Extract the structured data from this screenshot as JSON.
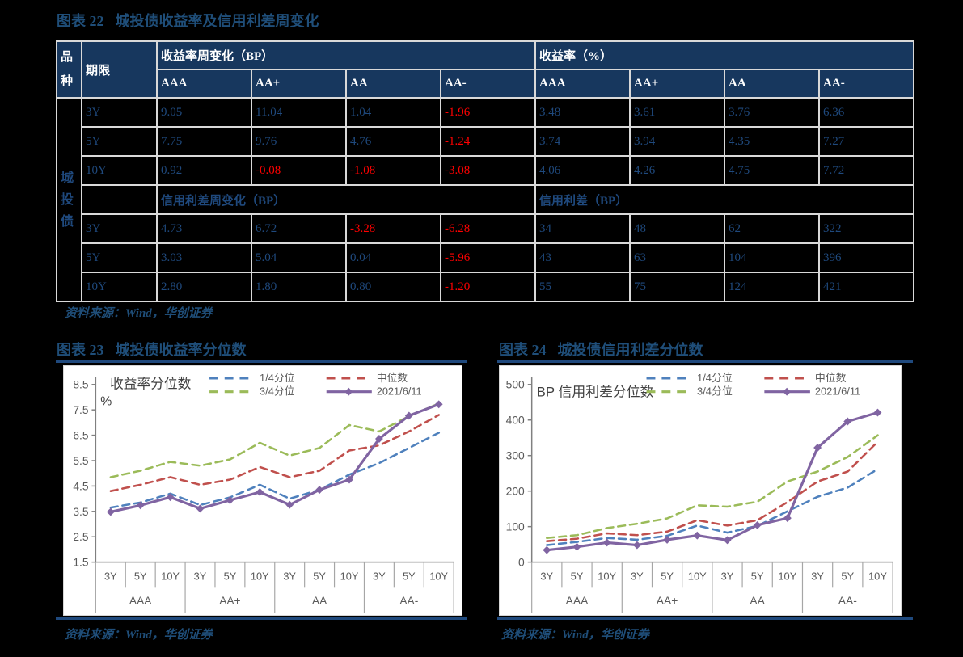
{
  "figure22": {
    "label": "图表 22",
    "title": "城投债收益率及信用利差周变化",
    "source": "资料来源：Wind，华创证券",
    "table": {
      "species_header": "品种",
      "term_header": "期限",
      "species": [
        "城",
        "投",
        "债"
      ],
      "ratings": [
        "AAA",
        "AA+",
        "AA",
        "AA-"
      ],
      "sections": [
        {
          "left_title": "收益率周变化（BP）",
          "right_title": "收益率（%）",
          "rows": [
            {
              "term": "3Y",
              "left": [
                "9.05",
                "11.04",
                "1.04",
                "-1.96"
              ],
              "right": [
                "3.48",
                "3.61",
                "3.76",
                "6.36"
              ]
            },
            {
              "term": "5Y",
              "left": [
                "7.75",
                "9.76",
                "4.76",
                "-1.24"
              ],
              "right": [
                "3.74",
                "3.94",
                "4.35",
                "7.27"
              ]
            },
            {
              "term": "10Y",
              "left": [
                "0.92",
                "-0.08",
                "-1.08",
                "-3.08"
              ],
              "right": [
                "4.06",
                "4.26",
                "4.75",
                "7.72"
              ]
            }
          ]
        },
        {
          "left_title": "信用利差周变化（BP）",
          "right_title": "信用利差（BP）",
          "rows": [
            {
              "term": "3Y",
              "left": [
                "4.73",
                "6.72",
                "-3.28",
                "-6.28"
              ],
              "right": [
                "34",
                "48",
                "62",
                "322"
              ]
            },
            {
              "term": "5Y",
              "left": [
                "3.03",
                "5.04",
                "0.04",
                "-5.96"
              ],
              "right": [
                "43",
                "63",
                "104",
                "396"
              ]
            },
            {
              "term": "10Y",
              "left": [
                "2.80",
                "1.80",
                "0.80",
                "-1.20"
              ],
              "right": [
                "55",
                "75",
                "124",
                "421"
              ]
            }
          ]
        }
      ]
    }
  },
  "figure23": {
    "label": "图表 23",
    "title": "城投债收益率分位数",
    "source": "资料来源：Wind，华创证券"
  },
  "figure24": {
    "label": "图表 24",
    "title": "城投债信用利差分位数",
    "source": "资料来源：Wind，华创证券"
  },
  "chart_data": [
    {
      "type": "line",
      "inner_title": "收益率分位数",
      "unit": "%",
      "ylim": [
        1.5,
        8.5
      ],
      "yticks": [
        "8.5",
        "7.5",
        "6.5",
        "5.5",
        "4.5",
        "3.5",
        "2.5",
        "1.5"
      ],
      "ytick_values": [
        8.5,
        7.5,
        6.5,
        5.5,
        4.5,
        3.5,
        2.5,
        1.5
      ],
      "groups": [
        "AAA",
        "AA+",
        "AA",
        "AA-"
      ],
      "terms": [
        "3Y",
        "5Y",
        "10Y"
      ],
      "legend_position": "top",
      "grid": false,
      "series": [
        {
          "name": "1/4分位",
          "color": "#4F81BD",
          "style": "dashed",
          "values": [
            3.65,
            3.85,
            4.2,
            3.75,
            4.05,
            4.55,
            4.0,
            4.35,
            4.95,
            5.4,
            6.0,
            6.6
          ]
        },
        {
          "name": "中位数",
          "color": "#C0504D",
          "style": "dashed",
          "values": [
            4.3,
            4.55,
            4.85,
            4.55,
            4.75,
            5.25,
            4.85,
            5.1,
            5.9,
            6.1,
            6.65,
            7.3
          ]
        },
        {
          "name": "3/4分位",
          "color": "#9BBB59",
          "style": "dashed",
          "values": [
            4.85,
            5.1,
            5.45,
            5.3,
            5.55,
            6.2,
            5.7,
            6.0,
            6.9,
            6.65,
            7.25,
            7.75
          ]
        },
        {
          "name": "2021/6/11",
          "color": "#8064A2",
          "style": "solid-marker",
          "values": [
            3.48,
            3.74,
            4.06,
            3.61,
            3.94,
            4.26,
            3.76,
            4.35,
            4.75,
            6.36,
            7.27,
            7.72
          ]
        }
      ]
    },
    {
      "type": "line",
      "inner_title": "BP 信用利差分位数",
      "unit": "",
      "ylim": [
        0,
        500
      ],
      "yticks": [
        "500",
        "400",
        "300",
        "200",
        "100",
        "0"
      ],
      "ytick_values": [
        500,
        400,
        300,
        200,
        100,
        0
      ],
      "groups": [
        "AAA",
        "AA+",
        "AA",
        "AA-"
      ],
      "terms": [
        "3Y",
        "5Y",
        "10Y"
      ],
      "legend_position": "top",
      "grid": false,
      "series": [
        {
          "name": "1/4分位",
          "color": "#4F81BD",
          "style": "dashed",
          "values": [
            48,
            57,
            68,
            63,
            74,
            103,
            83,
            102,
            143,
            184,
            210,
            262
          ]
        },
        {
          "name": "中位数",
          "color": "#C0504D",
          "style": "dashed",
          "values": [
            59,
            66,
            81,
            76,
            86,
            118,
            103,
            118,
            169,
            227,
            255,
            339
          ]
        },
        {
          "name": "3/4分位",
          "color": "#9BBB59",
          "style": "dashed",
          "values": [
            68,
            76,
            96,
            108,
            123,
            160,
            156,
            170,
            227,
            255,
            296,
            357
          ]
        },
        {
          "name": "2021/6/11",
          "color": "#8064A2",
          "style": "solid-marker",
          "values": [
            34,
            43,
            55,
            48,
            63,
            75,
            62,
            104,
            124,
            322,
            396,
            421
          ]
        }
      ]
    }
  ],
  "colors": {
    "header_bg": "#17375E",
    "table_text": "#1F497D",
    "negative": "#FF0000",
    "accent_rule": "#1F497D",
    "axis_text": "#595959"
  }
}
